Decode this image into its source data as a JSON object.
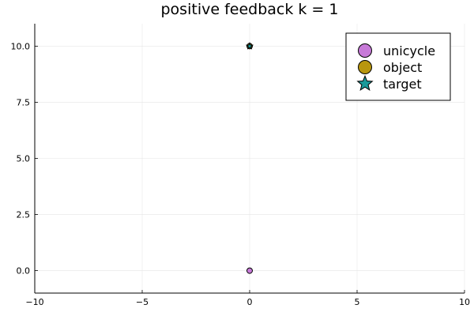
{
  "chart_data": {
    "type": "scatter",
    "title": "positive feedback k = 1",
    "xlabel": "",
    "ylabel": "",
    "xlim": [
      -10,
      10
    ],
    "ylim": [
      -1,
      11
    ],
    "x_ticks": [
      -10,
      -5,
      0,
      5,
      10
    ],
    "x_tick_labels": [
      "−10",
      "−5",
      "0",
      "5",
      "10"
    ],
    "y_ticks": [
      0,
      2.5,
      5,
      7.5,
      10
    ],
    "y_tick_labels": [
      "0.0",
      "2.5",
      "5.0",
      "7.5",
      "10.0"
    ],
    "grid": true,
    "legend_position": "top-right",
    "series": [
      {
        "name": "unicycle",
        "marker": "circle",
        "color": "#c77ad8",
        "points": [
          {
            "x": 0,
            "y": 0
          }
        ]
      },
      {
        "name": "object",
        "marker": "circle",
        "color": "#b8960f",
        "points": [
          {
            "x": 0,
            "y": 10
          }
        ]
      },
      {
        "name": "target",
        "marker": "star",
        "color": "#1a9a9a",
        "points": [
          {
            "x": 0,
            "y": 10
          }
        ]
      }
    ]
  }
}
